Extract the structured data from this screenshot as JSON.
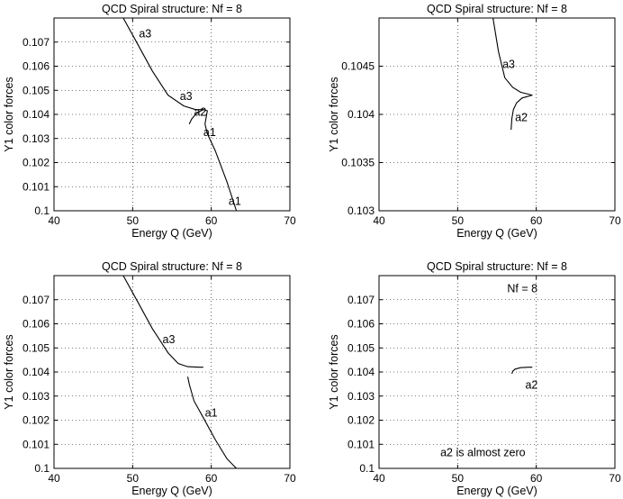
{
  "chart_data": [
    {
      "type": "line",
      "title": "QCD Spiral structure: Nf = 8",
      "xlabel": "Energy Q (GeV)",
      "ylabel": "Y1 color forces",
      "xlim": [
        40,
        70
      ],
      "ylim": [
        0.1,
        0.108
      ],
      "xticks": [
        "40",
        "50",
        "60",
        "70"
      ],
      "yticks": [
        "0.1",
        "0.101",
        "0.102",
        "0.103",
        "0.104",
        "0.105",
        "0.106",
        "0.107"
      ],
      "grid": true,
      "series": [
        {
          "x": [
            48.8,
            50.5,
            52.5,
            54.5,
            56.5,
            58.0,
            59.0
          ],
          "y": [
            0.108,
            0.107,
            0.1058,
            0.1048,
            0.10435,
            0.1042,
            0.1042
          ]
        },
        {
          "x": [
            57.2,
            57.5,
            58.0,
            58.4,
            59.0,
            59.5,
            59.2,
            59.5,
            60.5,
            62.0,
            63.2
          ],
          "y": [
            0.1036,
            0.1038,
            0.104,
            0.1041,
            0.1042,
            0.10415,
            0.1036,
            0.1032,
            0.1025,
            0.1012,
            0.1
          ]
        }
      ],
      "annotations": [
        {
          "text": "a3",
          "x": 50.8,
          "y": 0.1072
        },
        {
          "text": "a3",
          "x": 56.0,
          "y": 0.1046
        },
        {
          "text": "a2",
          "x": 57.8,
          "y": 0.10395
        },
        {
          "text": "a1",
          "x": 59.0,
          "y": 0.1031
        },
        {
          "text": "a1",
          "x": 62.2,
          "y": 0.10025
        }
      ]
    },
    {
      "type": "line",
      "title": "QCD Spiral structure: Nf = 8",
      "xlabel": "Energy Q (GeV)",
      "ylabel": "Y1 color forces",
      "xlim": [
        40,
        70
      ],
      "ylim": [
        0.103,
        0.105
      ],
      "xticks": [
        "40",
        "50",
        "60",
        "70"
      ],
      "yticks": [
        "0.103",
        "0.1035",
        "0.104",
        "0.1045"
      ],
      "grid": true,
      "series": [
        {
          "x": [
            54.5,
            55.2,
            56.0,
            57.0,
            58.0,
            59.5
          ],
          "y": [
            0.105,
            0.10465,
            0.10438,
            0.10428,
            0.10423,
            0.1042
          ]
        },
        {
          "x": [
            56.8,
            56.9,
            57.1,
            57.5,
            58.2,
            59.5
          ],
          "y": [
            0.10384,
            0.10396,
            0.10405,
            0.10412,
            0.10417,
            0.1042
          ]
        }
      ],
      "annotations": [
        {
          "text": "a3",
          "x": 55.7,
          "y": 0.10448
        },
        {
          "text": "a2",
          "x": 57.3,
          "y": 0.10393
        }
      ]
    },
    {
      "type": "line",
      "title": "QCD Spiral structure: Nf = 8",
      "xlabel": "Energy Q (GeV)",
      "ylabel": "Y1 color forces",
      "xlim": [
        40,
        70
      ],
      "ylim": [
        0.1,
        0.108
      ],
      "xticks": [
        "40",
        "50",
        "60",
        "70"
      ],
      "yticks": [
        "0.1",
        "0.101",
        "0.102",
        "0.103",
        "0.104",
        "0.105",
        "0.106",
        "0.107"
      ],
      "grid": true,
      "series": [
        {
          "x": [
            48.8,
            50.5,
            52.5,
            54.5,
            55.8,
            57.0,
            58.5,
            59.0
          ],
          "y": [
            0.108,
            0.107,
            0.1058,
            0.1048,
            0.10435,
            0.10422,
            0.1042,
            0.1042
          ]
        },
        {
          "x": [
            57.0,
            57.2,
            57.8,
            59.0,
            60.5,
            62.0,
            63.2
          ],
          "y": [
            0.1038,
            0.1035,
            0.1028,
            0.1021,
            0.1012,
            0.1004,
            0.1
          ]
        }
      ],
      "annotations": [
        {
          "text": "a3",
          "x": 53.8,
          "y": 0.1052
        },
        {
          "text": "a1",
          "x": 59.2,
          "y": 0.10215
        }
      ]
    },
    {
      "type": "line",
      "title": "QCD Spiral structure: Nf = 8",
      "xlabel": "Energy Q (GeV)",
      "ylabel": "Y1 color forces",
      "xlim": [
        40,
        70
      ],
      "ylim": [
        0.1,
        0.108
      ],
      "xticks": [
        "40",
        "50",
        "60",
        "70"
      ],
      "yticks": [
        "0.1",
        "0.101",
        "0.102",
        "0.103",
        "0.104",
        "0.105",
        "0.106",
        "0.107"
      ],
      "grid": true,
      "series": [
        {
          "x": [
            56.9,
            57.0,
            57.3,
            58.0,
            59.0,
            59.5
          ],
          "y": [
            0.10393,
            0.10403,
            0.10412,
            0.10418,
            0.1042,
            0.1042
          ]
        }
      ],
      "annotations": [
        {
          "text": "Nf = 8",
          "x": 56.3,
          "y": 0.1073
        },
        {
          "text": "a2",
          "x": 58.6,
          "y": 0.1033
        },
        {
          "text": "a2 is almost zero",
          "x": 47.8,
          "y": 0.1005
        }
      ]
    }
  ]
}
